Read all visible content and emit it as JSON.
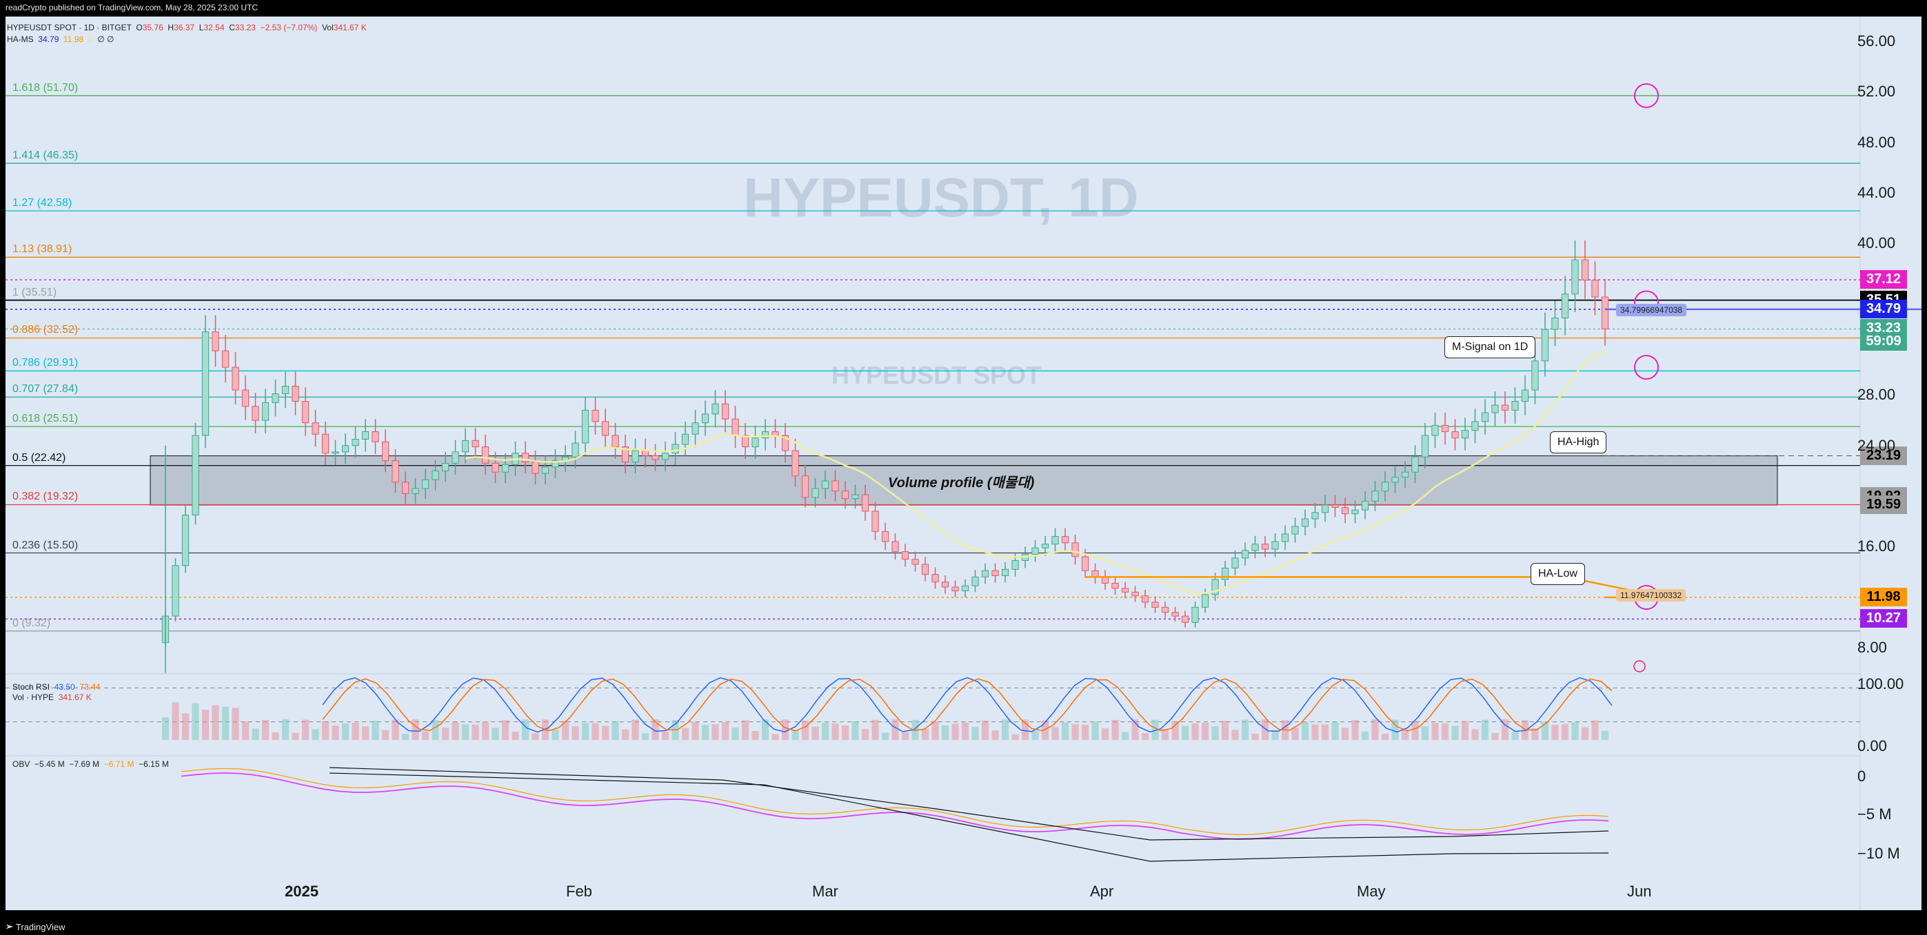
{
  "header": {
    "published": "readCrypto published on TradingView.com, May 28, 2025 23:00 UTC",
    "symbol_line": "HYPEUSDT SPOT · 1D · BITGET",
    "o_label": "O",
    "o": "35.76",
    "h_label": "H",
    "h": "36.37",
    "l_label": "L",
    "l": "32.54",
    "c_label": "C",
    "c": "33.23",
    "chg": "−2.53 (−7.07%)",
    "vol_label": "Vol",
    "vol": "341.67 K",
    "hams_label": "HA-MS",
    "hams_v1": "34.79",
    "hams_v2": "11.98",
    "hams_v3": "0",
    "hams_icons": "∅ ∅"
  },
  "watermark": {
    "title": "HYPEUSDT, 1D",
    "subtitle": "HYPEUSDT SPOT"
  },
  "fib_levels": [
    {
      "label": "1.618 (51.70)",
      "price": 51.7,
      "color": "#4caf50"
    },
    {
      "label": "1.414 (46.35)",
      "price": 46.35,
      "color": "#26a69a"
    },
    {
      "label": "1.27 (42.58)",
      "price": 42.58,
      "color": "#00bcd4"
    },
    {
      "label": "1.13 (38.91)",
      "price": 38.91,
      "color": "#f57c00"
    },
    {
      "label": "1 (35.51)",
      "price": 35.51,
      "color": "#9e9e9e"
    },
    {
      "label": "0.886 (32.52)",
      "price": 32.52,
      "color": "#f57c00"
    },
    {
      "label": "0.786 (29.91)",
      "price": 29.91,
      "color": "#00bcd4"
    },
    {
      "label": "0.707 (27.84)",
      "price": 27.84,
      "color": "#26a69a"
    },
    {
      "label": "0.618 (25.51)",
      "price": 25.51,
      "color": "#4caf50"
    },
    {
      "label": "0.5 (22.42)",
      "price": 22.42,
      "color": "#111111"
    },
    {
      "label": "0.382 (19.32)",
      "price": 19.32,
      "color": "#e53935"
    },
    {
      "label": "0.236 (15.50)",
      "price": 15.5,
      "color": "#37474f"
    },
    {
      "label": "0 (9.32)",
      "price": 9.32,
      "color": "#9e9e9e"
    }
  ],
  "volume_profile_label": "Volume profile (매물대)",
  "callouts": {
    "msignal": "M-Signal on 1D",
    "hahigh": "HA-High",
    "halow": "HA-Low"
  },
  "line_tags": {
    "ha_high_value": "34.79966947038",
    "ha_low_value": "11.97647100332"
  },
  "price_tags": [
    {
      "text": "37.12",
      "price": 37.12,
      "bg": "#e91ec4",
      "fg": "#ffffff"
    },
    {
      "text": "35.51",
      "price": 35.51,
      "bg": "#000000",
      "fg": "#ffffff"
    },
    {
      "text": "34.79",
      "price": 34.79,
      "bg": "#1e22e9",
      "fg": "#ffffff"
    },
    {
      "text": "33.23",
      "price": 33.23,
      "bg": "#3fa88d",
      "fg": "#ffffff"
    },
    {
      "text": "59:09",
      "price": 32.2,
      "bg": "#3fa88d",
      "fg": "#ffffff"
    },
    {
      "text": "23.19",
      "price": 23.19,
      "bg": "#9e9e9e",
      "fg": "#000000"
    },
    {
      "text": "19.92",
      "price": 19.92,
      "bg": "#9e9e9e",
      "fg": "#000000"
    },
    {
      "text": "19.59",
      "price": 19.3,
      "bg": "#9e9e9e",
      "fg": "#000000"
    },
    {
      "text": "11.98",
      "price": 11.98,
      "bg": "#ff9800",
      "fg": "#000000"
    },
    {
      "text": "10.27",
      "price": 10.27,
      "bg": "#9c1ee9",
      "fg": "#ffffff"
    }
  ],
  "y_axis": [
    "56.00",
    "52.00",
    "48.00",
    "44.00",
    "40.00",
    "28.00",
    "24.00",
    "16.00",
    "8.00"
  ],
  "x_axis": [
    "2025",
    "Feb",
    "Mar",
    "Apr",
    "May",
    "Jun"
  ],
  "stoch": {
    "label": "Stoch RSI",
    "k": "43.50",
    "d": "73.44",
    "vol_label": "Vol · HYPE",
    "vol_value": "341.67 K",
    "axis": [
      "100.00",
      "0.00"
    ]
  },
  "obv": {
    "label": "OBV",
    "v1": "−5.45 M",
    "v2": "−7.69 M",
    "v3": "−6.71 M",
    "v4": "−6.15 M",
    "axis": [
      "0",
      "−5 M",
      "−10 M"
    ]
  },
  "footer": {
    "brand": "TradingView"
  },
  "chart_data": {
    "type": "candlestick",
    "title": "HYPEUSDT, 1D",
    "x_start": "2024-12-01",
    "x_end": "2025-05-28",
    "closes": [
      10.5,
      14.5,
      18.5,
      24.8,
      33.0,
      31.5,
      30.2,
      28.4,
      27.1,
      26.0,
      27.4,
      28.1,
      28.7,
      27.5,
      25.8,
      24.9,
      23.4,
      23.5,
      24.0,
      24.5,
      25.1,
      24.3,
      22.8,
      21.1,
      20.2,
      20.6,
      21.3,
      22.0,
      22.6,
      23.5,
      24.4,
      23.9,
      22.6,
      21.9,
      22.5,
      23.4,
      22.7,
      21.8,
      22.3,
      22.8,
      23.1,
      24.2,
      26.8,
      25.9,
      24.8,
      23.9,
      22.7,
      23.6,
      23.2,
      22.9,
      23.4,
      24.1,
      24.9,
      25.8,
      26.5,
      27.3,
      26.1,
      24.8,
      23.9,
      24.6,
      25.1,
      24.8,
      23.6,
      21.6,
      19.9,
      20.6,
      21.2,
      20.4,
      19.8,
      20.1,
      18.8,
      17.2,
      16.4,
      15.6,
      15.0,
      14.6,
      13.8,
      13.2,
      12.8,
      12.5,
      12.9,
      13.6,
      14.1,
      13.7,
      14.2,
      14.9,
      15.4,
      15.9,
      16.2,
      16.8,
      16.3,
      15.2,
      14.1,
      13.6,
      13.1,
      12.7,
      12.4,
      12.1,
      11.6,
      11.2,
      10.8,
      10.5,
      10.0,
      11.2,
      12.2,
      13.4,
      14.3,
      15.1,
      15.7,
      16.2,
      15.8,
      16.4,
      17.0,
      17.6,
      18.2,
      18.7,
      19.3,
      19.1,
      18.6,
      18.9,
      19.6,
      20.4,
      21.1,
      21.5,
      21.9,
      23.1,
      24.8,
      25.6,
      25.1,
      24.6,
      25.2,
      25.9,
      26.6,
      27.2,
      26.8,
      27.5,
      28.4,
      30.7,
      33.2,
      34.1,
      36.0,
      38.7,
      37.1,
      35.76,
      33.23
    ]
  }
}
